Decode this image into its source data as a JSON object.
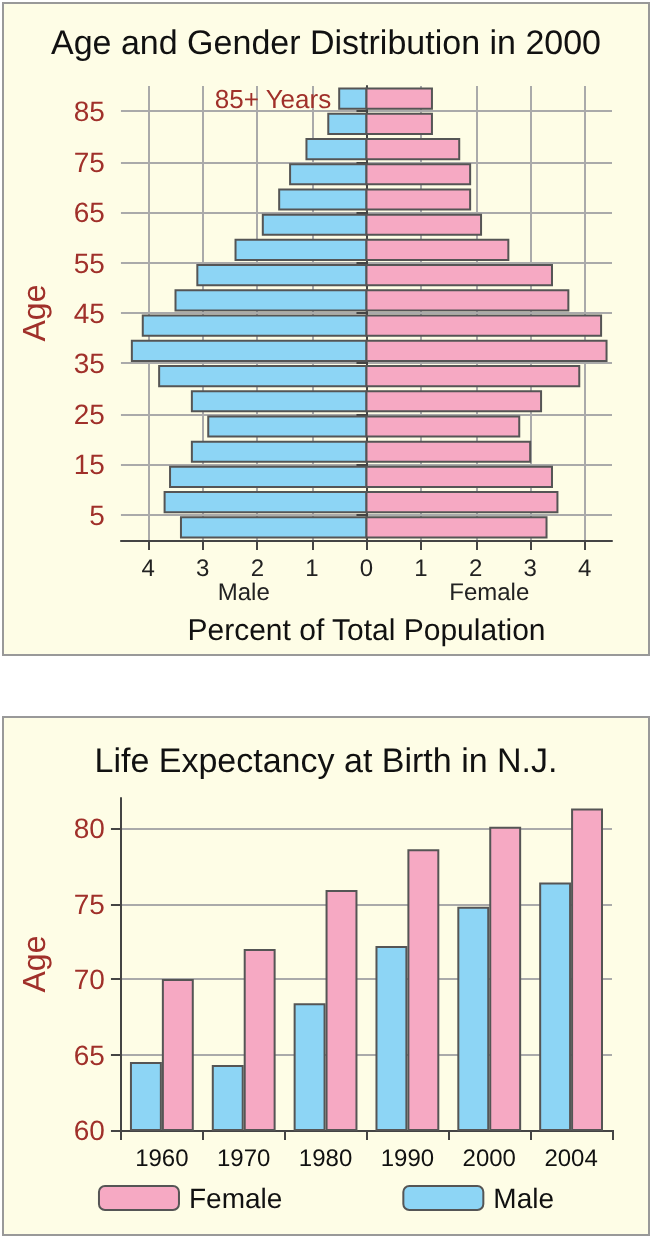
{
  "chart_data": [
    {
      "type": "bar",
      "orientation": "horizontal",
      "stacked": true,
      "title": "Age and Gender Distribution in 2000",
      "xlabel": "Percent of Total Population",
      "ylabel": "Age",
      "x": [
        2.5,
        7.5,
        12.5,
        17.5,
        22.5,
        27.5,
        32.5,
        37.5,
        42.5,
        47.5,
        52.5,
        57.5,
        62.5,
        67.5,
        72.5,
        77.5,
        82.5,
        87.5
      ],
      "series": [
        {
          "color": "#8dd5f5",
          "values": [
            -3.4,
            -3.7,
            -3.6,
            -3.2,
            -2.9,
            -3.2,
            -3.8,
            -4.3,
            -4.1,
            -3.5,
            -3.1,
            -2.4,
            -1.9,
            -1.6,
            -1.4,
            -1.1,
            -0.7,
            -0.5
          ]
        },
        {
          "color": "#f6a9c3",
          "values": [
            3.3,
            3.5,
            3.4,
            3.0,
            2.8,
            3.2,
            3.9,
            4.4,
            4.3,
            3.7,
            3.4,
            2.6,
            2.1,
            1.9,
            1.9,
            1.7,
            1.2,
            1.2
          ]
        }
      ],
      "xlim": [
        -4.5,
        4.5
      ],
      "xticks": [
        {
          "value": -4,
          "label": "4"
        },
        {
          "value": -3,
          "label": "3"
        },
        {
          "value": -2,
          "label": "2"
        },
        {
          "value": -1,
          "label": "1"
        },
        0,
        1,
        2,
        3,
        4
      ],
      "ylim": [
        0,
        90
      ],
      "yticks": [
        5,
        15,
        25,
        35,
        45,
        55,
        65,
        75,
        85
      ],
      "grid": true,
      "annotations": [
        {
          "text": "85+ Years",
          "x": -0.5,
          "y": 87.5
        },
        "Male",
        "Female"
      ]
    },
    {
      "type": "bar",
      "title": "Life Expectancy at Birth in N.J.",
      "ylabel": "Age",
      "categories": [
        "1960",
        "1970",
        "1980",
        "1990",
        "2000",
        "2004"
      ],
      "series": [
        {
          "name": "Male",
          "color": "#8dd5f5",
          "values": [
            64.5,
            64.3,
            68.4,
            72.2,
            74.8,
            76.4
          ]
        },
        {
          "name": "Female",
          "color": "#f6a9c3",
          "values": [
            70.0,
            72.0,
            75.9,
            78.6,
            80.1,
            81.3
          ]
        }
      ],
      "ylim": [
        60,
        82
      ],
      "yticks": [
        60,
        65,
        70,
        75,
        80
      ],
      "grid": "y",
      "legend": "bottom"
    }
  ]
}
